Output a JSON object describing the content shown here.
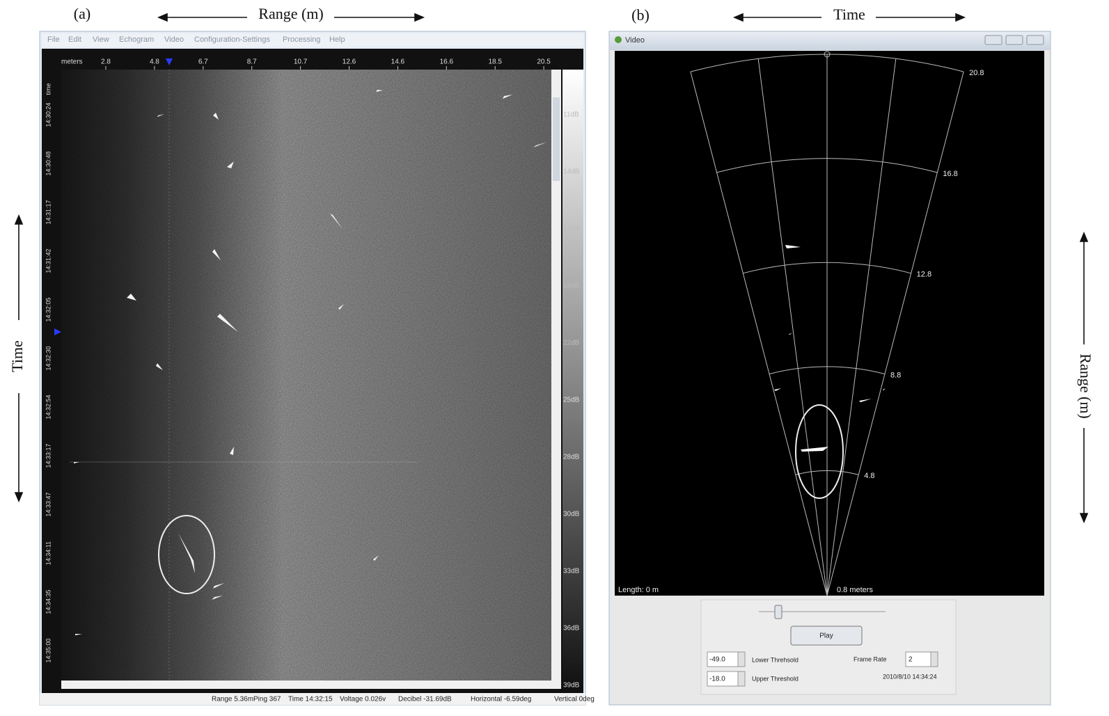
{
  "panel_a": {
    "label": "(a)",
    "top_axis": "Range (m)",
    "side_axis": "Time",
    "menu": [
      "File",
      "Edit",
      "View",
      "Echogram",
      "Video",
      "Configuration-Settings",
      "Processing",
      "Help"
    ],
    "range_ruler": {
      "unit": "meters",
      "ticks": [
        "2.8",
        "4.8",
        "6.7",
        "8.7",
        "10.7",
        "12.6",
        "14.6",
        "16.6",
        "18.5",
        "20.5"
      ]
    },
    "time_ruler": {
      "unit": "time",
      "ticks": [
        "14:30:24",
        "14:30:48",
        "14:31:17",
        "14:31:42",
        "14:32:05",
        "14:32:30",
        "14:32:54",
        "14:33:17",
        "14:33:47",
        "14:34:11",
        "14:34:35",
        "14:35:00"
      ]
    },
    "db_scale": [
      "11dB",
      "14dB",
      "17dB",
      "19dB",
      "22dB",
      "25dB",
      "28dB",
      "30dB",
      "33dB",
      "36dB",
      "39dB"
    ],
    "status_bar": [
      "Range 5.36m",
      "Ping 367",
      "Time 14:32:15",
      "Voltage 0.026v",
      "Decibel -31.69dB",
      "Horizontal -6.59deg",
      "Vertical 0deg"
    ]
  },
  "panel_b": {
    "label": "(b)",
    "top_axis": "Time",
    "side_axis": "Range (m)",
    "window_title": "Video",
    "range_rings": [
      "20.8",
      "16.8",
      "12.8",
      "8.8",
      "4.8"
    ],
    "length_readout": "Length: 0 m",
    "scale_readout": "0.8 meters",
    "play_button": "Play",
    "lower_threshold": {
      "value": "-49.0",
      "label": "Lower Threhsold"
    },
    "upper_threshold": {
      "value": "-18.0",
      "label": "Upper Threshold"
    },
    "frame_rate": {
      "label": "Frame Rate",
      "value": "2"
    },
    "timestamp": "2010/8/10 14:34:24"
  }
}
